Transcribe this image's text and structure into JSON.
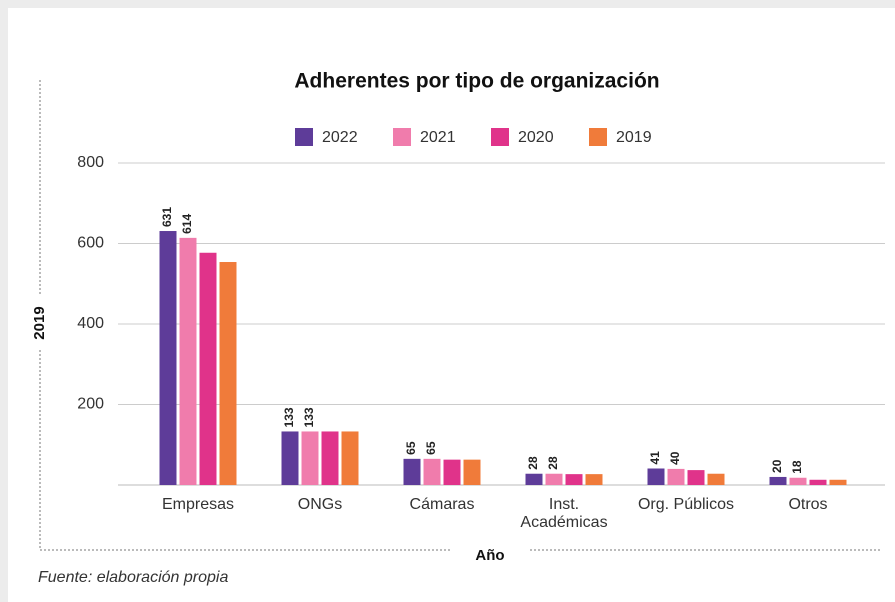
{
  "chart_data": {
    "type": "bar",
    "title": "Adherentes por tipo de organización",
    "x_label": "Año",
    "y_label": "2019",
    "source": "Fuente: elaboración propia",
    "categories": [
      "Empresas",
      "ONGs",
      "Cámaras",
      "Inst.\nAcadémicas",
      "Org. Públicos",
      "Otros"
    ],
    "series": [
      {
        "name": "2022",
        "color": "#5e3c99",
        "labels": true,
        "values": [
          631,
          133,
          65,
          28,
          41,
          20
        ]
      },
      {
        "name": "2021",
        "color": "#f07cac",
        "labels": true,
        "values": [
          614,
          133,
          65,
          28,
          40,
          18
        ]
      },
      {
        "name": "2020",
        "color": "#e0338a",
        "labels": false,
        "values": [
          577,
          133,
          63,
          27,
          37,
          13
        ]
      },
      {
        "name": "2019",
        "color": "#f07b3a",
        "labels": false,
        "values": [
          554,
          133,
          63,
          27,
          28,
          13
        ]
      }
    ],
    "ylim": [
      0,
      800
    ],
    "yticks": [
      200,
      400,
      600,
      800
    ],
    "grid": true
  }
}
